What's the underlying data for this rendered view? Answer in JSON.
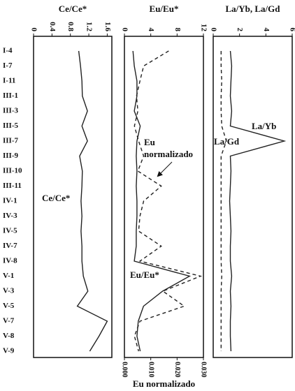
{
  "chart_data": [
    {
      "type": "line",
      "title": "Ce/Ce*",
      "categories": [
        "I-4",
        "I-7",
        "I-11",
        "III-1",
        "III-3",
        "III-5",
        "III-7",
        "III-9",
        "III-10",
        "III-11",
        "IV-1",
        "IV-3",
        "IV-5",
        "IV-7",
        "IV-8",
        "V-1",
        "V-3",
        "V-5",
        "V-7",
        "V-8",
        "V-9"
      ],
      "xlim": [
        0,
        1.7
      ],
      "xticks": [
        0,
        0.4,
        0.8,
        1.2,
        1.6
      ],
      "series": [
        {
          "name": "Ce/Ce*",
          "color": "#222222",
          "dash": false,
          "values": [
            0.98,
            1.02,
            1.05,
            1.06,
            1.17,
            1.05,
            1.17,
            1.0,
            1.06,
            1.05,
            1.03,
            1.05,
            1.03,
            1.05,
            1.05,
            1.08,
            1.18,
            0.95,
            1.6,
            1.42,
            1.22
          ]
        }
      ],
      "annotations": [
        {
          "text": "Ce/Ce*"
        }
      ]
    },
    {
      "type": "line",
      "title": "Eu/Eu*",
      "x2label": "Eu normalizado",
      "xlim": [
        0,
        12
      ],
      "xticks": [
        0,
        4,
        8,
        12
      ],
      "x2lim": [
        0,
        0.03
      ],
      "x2ticks": [
        {
          "value": 0,
          "label": "0.000"
        },
        {
          "value": 0.01,
          "label": "0.010"
        },
        {
          "value": 0.02,
          "label": "0.020"
        },
        {
          "value": 0.03,
          "label": "0.030"
        }
      ],
      "series": [
        {
          "name": "Eu/Eu*",
          "color": "#222222",
          "dash": false,
          "values": [
            1.3,
            1.5,
            1.9,
            1.9,
            1.5,
            2.4,
            1.9,
            1.8,
            1.9,
            1.8,
            1.9,
            1.9,
            1.8,
            1.8,
            1.5,
            9.9,
            5.8,
            2.9,
            2.1,
            1.9,
            2.4
          ]
        },
        {
          "name": "Eu normalizado",
          "color": "#222222",
          "dash": true,
          "axis": "x2",
          "values": [
            0.0168,
            0.0073,
            0.0059,
            0.0046,
            0.0051,
            0.0038,
            0.0054,
            0.0073,
            0.0051,
            0.014,
            0.0073,
            0.0059,
            0.0054,
            0.014,
            0.0059,
            0.0289,
            0.0146,
            0.0227,
            0.0059,
            0.0038,
            0.0054
          ]
        }
      ],
      "annotations": [
        {
          "text": "Eu normalizado"
        },
        {
          "text": "Eu/Eu*"
        }
      ]
    },
    {
      "type": "line",
      "title": "La/Yb, La/Gd",
      "xlim": [
        0,
        6
      ],
      "xticks": [
        0,
        2,
        4,
        6
      ],
      "series": [
        {
          "name": "La/Yb",
          "color": "#222222",
          "dash": false,
          "values": [
            1.3,
            1.4,
            1.35,
            1.3,
            1.4,
            1.3,
            5.4,
            1.3,
            1.35,
            1.3,
            1.25,
            1.3,
            1.35,
            1.3,
            1.3,
            1.4,
            1.3,
            1.35,
            1.3,
            1.3,
            1.35
          ]
        },
        {
          "name": "La/Gd",
          "color": "#222222",
          "dash": true,
          "values": [
            0.6,
            0.6,
            0.65,
            0.6,
            0.6,
            0.65,
            1.0,
            0.6,
            0.6,
            0.6,
            0.6,
            0.6,
            0.6,
            0.6,
            0.6,
            0.65,
            0.6,
            0.6,
            0.6,
            0.6,
            0.6
          ]
        }
      ],
      "annotations": [
        {
          "text": "La/Yb"
        },
        {
          "text": "La/Gd"
        }
      ]
    }
  ]
}
